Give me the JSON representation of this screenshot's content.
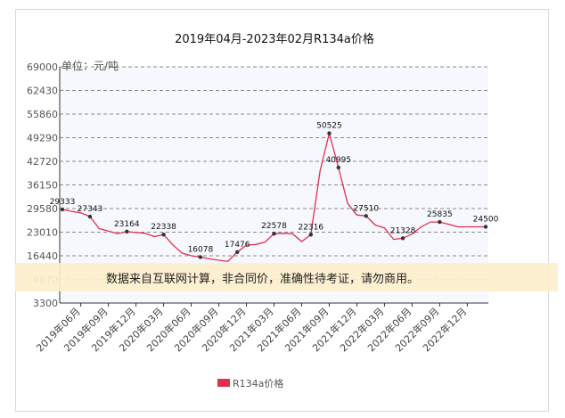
{
  "chart_data": {
    "type": "line",
    "title": "2019年04月-2023年02月R134a价格",
    "unit_label": "单位：元/吨",
    "ylim": [
      3300,
      69000
    ],
    "yticks": [
      3300,
      9870,
      16440,
      23010,
      29580,
      36150,
      42720,
      49290,
      55860,
      62430,
      69000
    ],
    "yticks_text": [
      "3300",
      "9870",
      "16440",
      "23010",
      "29580",
      "36150",
      "42720",
      "49290",
      "55860",
      "62430",
      "69000"
    ],
    "xticks": [
      "2019年06月",
      "2019年09月",
      "2019年12月",
      "2020年03月",
      "2020年06月",
      "2020年09月",
      "2020年12月",
      "2021年03月",
      "2021年06月",
      "2021年09月",
      "2021年12月",
      "2022年03月",
      "2022年06月",
      "2022年09月",
      "2022年12月"
    ],
    "grid": true,
    "legend_position": "bottom",
    "color": "#e0304f",
    "series": [
      {
        "name": "R134a价格",
        "x": [
          "2019-04",
          "2019-05",
          "2019-06",
          "2019-07",
          "2019-08",
          "2019-09",
          "2019-10",
          "2019-11",
          "2019-12",
          "2020-01",
          "2020-02",
          "2020-03",
          "2020-04",
          "2020-05",
          "2020-06",
          "2020-07",
          "2020-08",
          "2020-09",
          "2020-10",
          "2020-11",
          "2020-12",
          "2021-01",
          "2021-02",
          "2021-03",
          "2021-04",
          "2021-05",
          "2021-06",
          "2021-07",
          "2021-08",
          "2021-09",
          "2021-10",
          "2021-11",
          "2021-12",
          "2022-01",
          "2022-02",
          "2022-03",
          "2022-04",
          "2022-05",
          "2022-06",
          "2022-07",
          "2022-08",
          "2022-09",
          "2022-10",
          "2022-11",
          "2022-12",
          "2023-01",
          "2023-02"
        ],
        "values": [
          29333,
          28800,
          28400,
          27343,
          24000,
          23300,
          22600,
          23164,
          22900,
          22700,
          21800,
          22338,
          19500,
          17200,
          16450,
          16078,
          15600,
          15200,
          14900,
          17476,
          19400,
          19600,
          20200,
          22578,
          22700,
          22600,
          20400,
          22316,
          40000,
          50525,
          40995,
          31000,
          27800,
          27510,
          25000,
          24200,
          21000,
          21328,
          22500,
          24500,
          25835,
          25835,
          25200,
          24500,
          24500,
          24500,
          24500
        ],
        "labeled": [
          {
            "x": "2019-04",
            "label": "29333"
          },
          {
            "x": "2019-07",
            "label": "27343"
          },
          {
            "x": "2019-11",
            "label": "23164"
          },
          {
            "x": "2020-03",
            "label": "22338"
          },
          {
            "x": "2020-07",
            "label": "16078"
          },
          {
            "x": "2020-11",
            "label": "17476"
          },
          {
            "x": "2021-03",
            "label": "22578"
          },
          {
            "x": "2021-07",
            "label": "22316"
          },
          {
            "x": "2021-09",
            "label": "50525"
          },
          {
            "x": "2021-10",
            "label": "40995"
          },
          {
            "x": "2022-01",
            "label": "27510"
          },
          {
            "x": "2022-05",
            "label": "21328"
          },
          {
            "x": "2022-09",
            "label": "25835"
          },
          {
            "x": "2023-02",
            "label": "24500"
          }
        ]
      }
    ],
    "disclaimer": "数据来自互联网计算，非合同价，准确性待考证，请勿商用。"
  }
}
